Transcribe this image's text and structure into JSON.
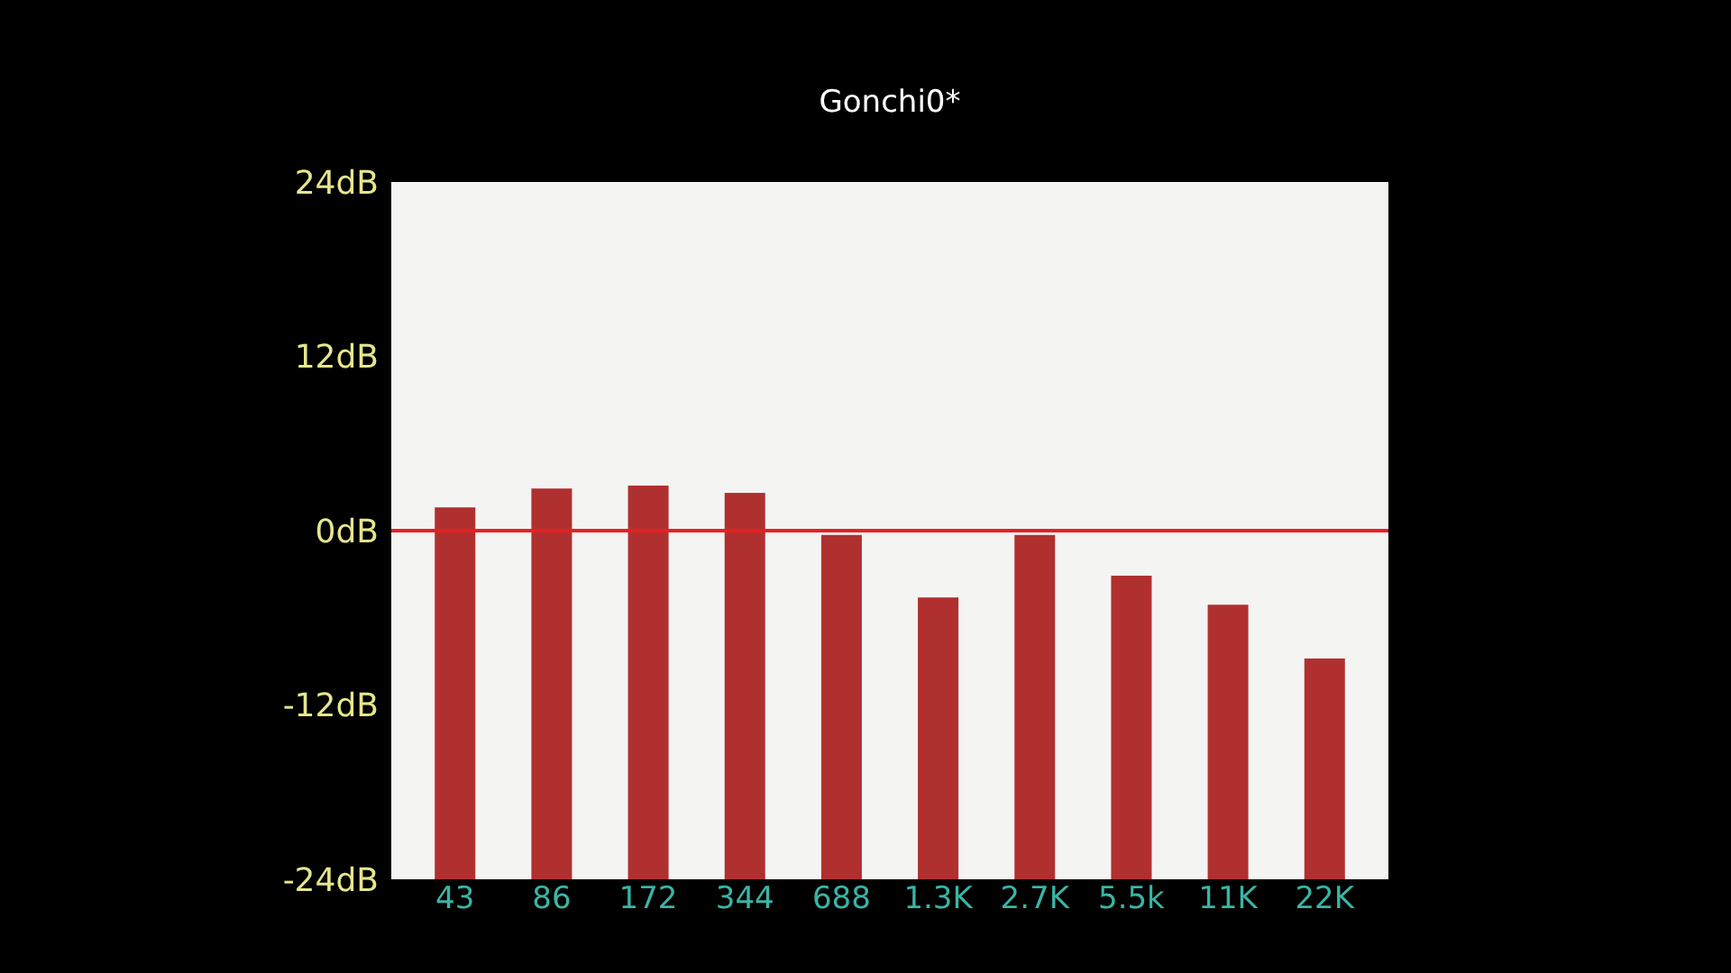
{
  "chart_data": {
    "type": "bar",
    "title": "Gonchi0*",
    "categories": [
      "43",
      "86",
      "172",
      "344",
      "688",
      "1.3K",
      "2.7K",
      "5.5k",
      "11K",
      "22K"
    ],
    "base": [
      -24,
      -24,
      -24,
      -24,
      -24,
      -24,
      -24,
      -24,
      -24,
      -24
    ],
    "values": [
      25.6,
      26.9,
      27.1,
      26.6,
      23.7,
      19.4,
      23.7,
      20.9,
      18.9,
      15.2
    ],
    "color": "#b03030",
    "ylim": [
      -24,
      24
    ],
    "yticks": [
      {
        "value": -24,
        "label": "-24dB"
      },
      {
        "value": -12,
        "label": "-12dB"
      },
      {
        "value": 0,
        "label": "0dB"
      },
      {
        "value": 12,
        "label": "12dB"
      },
      {
        "value": 24,
        "label": "24dB"
      }
    ],
    "ref_lines": [
      {
        "axis": "y",
        "value": 0,
        "color": "#e82020"
      }
    ],
    "grid": false
  }
}
